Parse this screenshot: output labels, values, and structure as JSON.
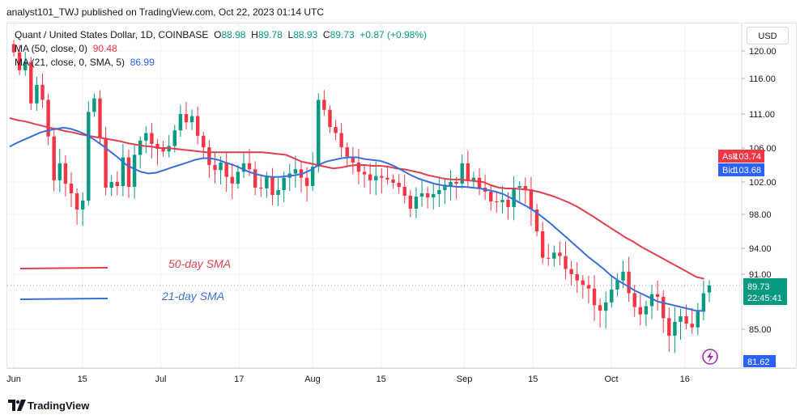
{
  "header": {
    "published": "analyst101_TWJ published on TradingView.com, Oct 22, 2023 01:14 UTC"
  },
  "legend": {
    "symbol": "Quant / United States Dollar, 1D, COINBASE",
    "o_label": "O",
    "o": "88.98",
    "h_label": "H",
    "h": "89.78",
    "l_label": "L",
    "l": "88.93",
    "c_label": "C",
    "c": "89.73",
    "change": "+0.87 (+0.98%)",
    "ma50_label": "MA (50, close, 0)",
    "ma50_value": "90.48",
    "ma21_label": "MA (21, close, 0, SMA, 5)",
    "ma21_value": "86.99"
  },
  "currency": "USD",
  "brand": "TradingView",
  "colors": {
    "up": "#089981",
    "down": "#f23645",
    "ma50": "#e0404e",
    "ma21": "#3a6fd8",
    "ask": "#f23645",
    "bid": "#2962ff"
  },
  "chart_data": {
    "type": "candlestick",
    "y_ticks": [
      120.0,
      116.0,
      111.0,
      106.0,
      102.0,
      98.0,
      94.0,
      91.0,
      89.73,
      85.0,
      81.62
    ],
    "y_ticks_labels": [
      "120.00",
      "116.00",
      "111.00",
      "106.00",
      "102.00",
      "98.00",
      "94.00",
      "91.00",
      "85.00"
    ],
    "x_ticks": [
      {
        "label": "Jun",
        "date": "2023-06-01"
      },
      {
        "label": "15",
        "date": "2023-06-15"
      },
      {
        "label": "Jul",
        "date": "2023-07-01"
      },
      {
        "label": "17",
        "date": "2023-07-17"
      },
      {
        "label": "Aug",
        "date": "2023-08-01"
      },
      {
        "label": "15",
        "date": "2023-08-15"
      },
      {
        "label": "Sep",
        "date": "2023-09-01"
      },
      {
        "label": "15",
        "date": "2023-09-15"
      },
      {
        "label": "Oct",
        "date": "2023-10-01"
      },
      {
        "label": "16",
        "date": "2023-10-16"
      }
    ],
    "price_labels": {
      "ask_label": "Ask",
      "ask": "103.74",
      "bid_label": "Bid",
      "bid": "103.68",
      "last": "89.73",
      "countdown": "22:45:41",
      "low_marker": "81.62"
    },
    "annotations": [
      {
        "text": "50-day SMA",
        "color": "#e0404e"
      },
      {
        "text": "21-day SMA",
        "color": "#3a6fd8"
      }
    ],
    "candles_close": [
      119.8,
      117.2,
      118.4,
      112.5,
      115.1,
      113.0,
      107.7,
      102.2,
      104.2,
      101.8,
      100.6,
      98.6,
      99.7,
      111.3,
      113.2,
      107.5,
      101.3,
      102.0,
      101.5,
      104.9,
      101.4,
      105.2,
      107.1,
      108.2,
      106.6,
      105.9,
      105.6,
      106.3,
      108.6,
      111.0,
      109.8,
      110.7,
      107.8,
      106.1,
      104.0,
      103.4,
      104.3,
      102.6,
      101.8,
      103.2,
      104.2,
      103.5,
      101.3,
      101.2,
      102.6,
      100.4,
      101.0,
      102.5,
      103.0,
      103.5,
      102.5,
      101.5,
      103.8,
      113.0,
      111.6,
      109.1,
      108.2,
      106.1,
      105.0,
      104.3,
      103.2,
      102.9,
      102.2,
      102.7,
      102.5,
      102.3,
      101.9,
      101.4,
      100.3,
      98.7,
      100.2,
      100.6,
      100.1,
      100.5,
      101.0,
      101.5,
      102.0,
      101.8,
      104.2,
      102.1,
      102.5,
      101.3,
      100.8,
      99.6,
      99.5,
      99.8,
      98.9,
      101.3,
      101.5,
      101.1,
      98.6,
      96.0,
      92.9,
      92.8,
      93.5,
      93.1,
      91.6,
      91.0,
      90.3,
      89.8,
      89.4,
      87.6,
      87.0,
      87.9,
      89.3,
      90.3,
      91.3,
      88.9,
      87.4,
      86.6,
      87.5,
      88.8,
      88.5,
      86.2,
      84.3,
      85.8,
      86.4,
      85.6,
      85.2,
      86.9,
      88.9,
      89.73
    ],
    "ma50": [
      110.4,
      110.1,
      109.9,
      109.6,
      109.3,
      109.0,
      108.8,
      108.5,
      108.3,
      108.0,
      107.8,
      107.6,
      107.4,
      107.2,
      107.0,
      106.7,
      106.5,
      106.3,
      106.2,
      106.0,
      106.0,
      105.9,
      105.8,
      105.7,
      105.6,
      105.5,
      105.5,
      105.5,
      105.5,
      105.5,
      105.5,
      105.5,
      105.5,
      105.4,
      105.3,
      105.2,
      104.8,
      104.4,
      104.2,
      104.0,
      103.8,
      103.6,
      103.7,
      103.9,
      104.0,
      104.0,
      103.9,
      103.9,
      103.8,
      103.6,
      103.5,
      103.3,
      103.1,
      102.8,
      102.6,
      102.4,
      102.3,
      102.3,
      102.2,
      102.1,
      102.0,
      101.6,
      101.3,
      101.2,
      101.2,
      101.1,
      101.0,
      100.8,
      100.5,
      100.2,
      99.8,
      99.4,
      98.9,
      98.3,
      97.7,
      97.1,
      96.5,
      95.9,
      95.3,
      94.8,
      94.2,
      93.7,
      93.2,
      92.7,
      92.2,
      91.7,
      91.2,
      90.7,
      90.48
    ],
    "ma21": [
      106.2,
      106.8,
      107.3,
      107.8,
      108.3,
      108.6,
      108.8,
      109.0,
      108.8,
      108.4,
      107.9,
      107.2,
      106.4,
      105.6,
      104.9,
      104.1,
      103.6,
      103.2,
      103.0,
      103.1,
      103.4,
      103.7,
      104.0,
      104.3,
      104.6,
      104.8,
      104.8,
      104.6,
      104.3,
      104.0,
      103.6,
      103.2,
      102.9,
      102.7,
      102.6,
      102.6,
      102.7,
      102.8,
      103.0,
      103.4,
      104.0,
      104.4,
      104.6,
      104.8,
      104.9,
      104.9,
      104.7,
      104.6,
      104.5,
      104.2,
      103.8,
      103.3,
      102.8,
      102.4,
      102.1,
      101.8,
      101.6,
      101.5,
      101.4,
      101.4,
      101.3,
      101.2,
      101.0,
      100.8,
      100.5,
      100.0,
      99.5,
      99.0,
      98.4,
      97.7,
      97.0,
      96.2,
      95.4,
      94.6,
      93.8,
      93.0,
      92.3,
      91.6,
      90.8,
      90.2,
      89.7,
      89.2,
      88.8,
      88.4,
      88.0,
      87.8,
      87.6,
      87.4,
      87.2,
      87.0,
      86.99
    ]
  }
}
